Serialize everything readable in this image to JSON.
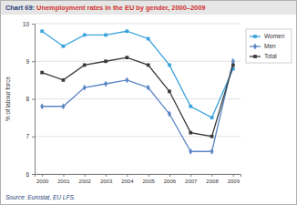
{
  "chart_data": {
    "type": "line",
    "title": "Chart 69: Unemployment rates in the EU by gender, 2000–2009",
    "y_label": "% of labour force",
    "source": "Source: Eurostat, EU LFS.",
    "categories": [
      "2000",
      "2001",
      "2002",
      "2003",
      "2004",
      "2005",
      "2006",
      "2007",
      "2008",
      "2009"
    ],
    "series": [
      {
        "name": "Women",
        "color": "#3aa3dc",
        "marker": "square",
        "values": [
          9.8,
          9.4,
          9.7,
          9.7,
          9.8,
          9.6,
          8.9,
          7.8,
          7.5,
          8.8
        ]
      },
      {
        "name": "Men",
        "color": "#5b86c4",
        "marker": "diamond",
        "values": [
          7.8,
          7.8,
          8.3,
          8.4,
          8.5,
          8.3,
          7.6,
          6.6,
          6.6,
          9.0
        ]
      },
      {
        "name": "Total",
        "color": "#3a3a3a",
        "marker": "square",
        "values": [
          8.7,
          8.5,
          8.9,
          9.0,
          9.1,
          8.9,
          8.2,
          7.1,
          7.0,
          8.9
        ]
      }
    ],
    "ylim": [
      6,
      10
    ],
    "yticks": [
      6,
      7,
      8,
      9,
      10
    ],
    "grid": true,
    "legend": "right"
  }
}
